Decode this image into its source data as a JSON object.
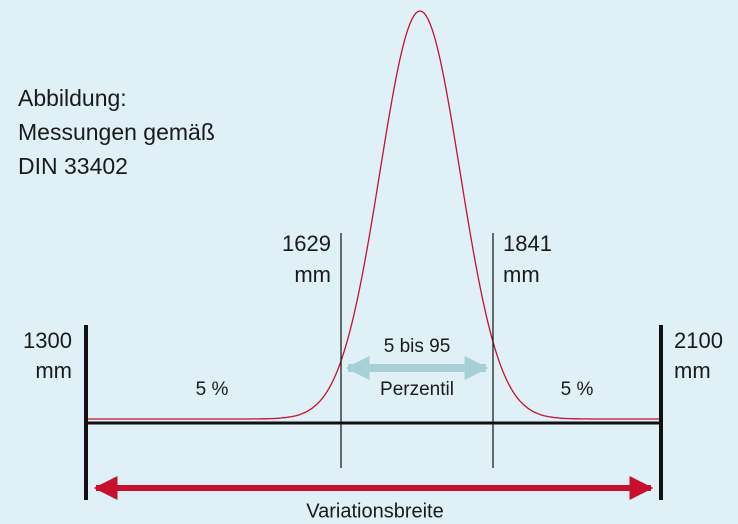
{
  "caption": [
    "Abbildung:",
    "Messungen gemäß",
    "DIN 33402"
  ],
  "markers": [
    {
      "value": "1300",
      "unit": "mm"
    },
    {
      "value": "1629",
      "unit": "mm"
    },
    {
      "value": "1841",
      "unit": "mm"
    },
    {
      "value": "2100",
      "unit": "mm"
    }
  ],
  "segments": [
    {
      "label": "5 %"
    },
    {
      "label": [
        "5 bis 95",
        "Perzentil"
      ]
    },
    {
      "label": "5 %"
    }
  ],
  "range_label": "Variationsbreite"
}
